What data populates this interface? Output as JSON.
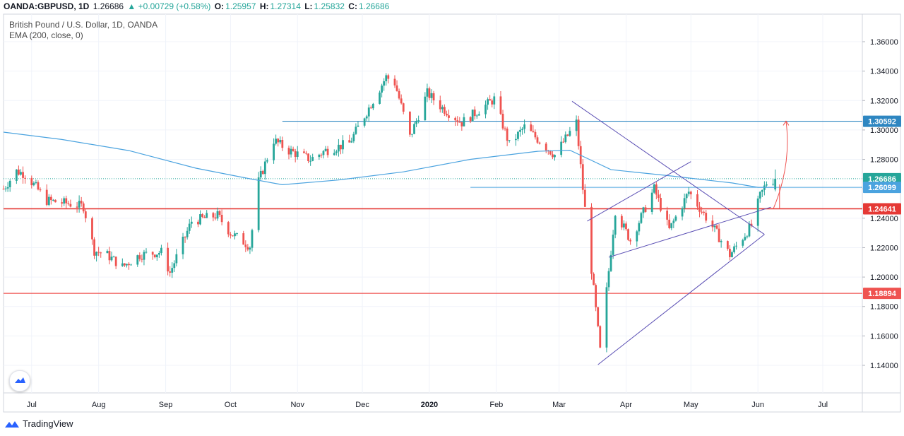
{
  "header": {
    "symbol": "OANDA:GBPUSD, 1D",
    "price": "1.26686",
    "change": "▲ +0.00729 (+0.58%)",
    "o_label": "O:",
    "o_value": "1.25957",
    "h_label": "H:",
    "h_value": "1.27314",
    "l_label": "L:",
    "l_value": "1.25832",
    "c_label": "C:",
    "c_value": "1.26686"
  },
  "legend": {
    "line1": "British Pound / U.S. Dollar, 1D, OANDA",
    "line2": "EMA (200, close, 0)"
  },
  "branding": {
    "name": "TradingView",
    "logo_icon": "tradingview-logo-icon"
  },
  "colors": {
    "up": "#26a69a",
    "down": "#ef5350",
    "ema": "#4ba3df",
    "resistance": "#2e86c1",
    "support": "#e53935",
    "trendline": "#5b4fb4"
  },
  "chart_data": {
    "type": "candlestick",
    "title": "British Pound / U.S. Dollar, 1D, OANDA",
    "indicator": "EMA (200, close, 0)",
    "ylim": [
      1.13,
      1.37
    ],
    "y_ticks": [
      "1.36000",
      "1.34000",
      "1.32000",
      "1.30000",
      "1.28000",
      "1.26000",
      "1.24000",
      "1.22000",
      "1.20000",
      "1.18000",
      "1.16000",
      "1.14000"
    ],
    "x_ticks": [
      "Jul",
      "Aug",
      "Sep",
      "Oct",
      "Nov",
      "Dec",
      "2020",
      "Feb",
      "Mar",
      "Apr",
      "May",
      "Jun",
      "Jul"
    ],
    "x_tick_dates": [
      "2019-07-01",
      "2019-08-01",
      "2019-09-01",
      "2019-10-01",
      "2019-11-01",
      "2019-12-01",
      "2020-01-01",
      "2020-02-01",
      "2020-03-01",
      "2020-04-01",
      "2020-05-01",
      "2020-06-01",
      "2020-07-01"
    ],
    "price_labels": [
      {
        "text": "1.30592",
        "value": 1.30592,
        "color": "#2e86c1"
      },
      {
        "text": "1.26686",
        "value": 1.26686,
        "color": "#26a69a"
      },
      {
        "text": "1.26099",
        "value": 1.26099,
        "color": "#4ba3df"
      },
      {
        "text": "1.24641",
        "value": 1.24641,
        "color": "#e53935"
      },
      {
        "text": "1.18894",
        "value": 1.18894,
        "color": "#ef5350"
      }
    ],
    "horizontal_lines": [
      {
        "value": 1.30592,
        "start": "2019-10-25",
        "color": "#2e86c1"
      },
      {
        "value": 1.24641,
        "start": "2019-06-18",
        "color": "#e53935"
      },
      {
        "value": 1.18894,
        "start": "2019-06-18",
        "color": "#ef5350"
      }
    ],
    "ema_points": [
      [
        "2019-06-18",
        1.2985
      ],
      [
        "2019-07-15",
        1.2935
      ],
      [
        "2019-08-15",
        1.286
      ],
      [
        "2019-09-15",
        1.274
      ],
      [
        "2019-10-10",
        1.2668
      ],
      [
        "2019-10-25",
        1.2628
      ],
      [
        "2019-11-20",
        1.266
      ],
      [
        "2019-12-20",
        1.2715
      ],
      [
        "2020-01-20",
        1.28
      ],
      [
        "2020-02-20",
        1.2855
      ],
      [
        "2020-03-06",
        1.2862
      ],
      [
        "2020-03-15",
        1.28
      ],
      [
        "2020-03-25",
        1.273
      ],
      [
        "2020-04-20",
        1.269
      ],
      [
        "2020-05-20",
        1.264
      ],
      [
        "2020-06-01",
        1.261
      ],
      [
        "2020-06-09",
        1.261
      ]
    ],
    "trendlines": [
      {
        "from": [
          "2020-03-07",
          1.3195
        ],
        "to": [
          "2020-06-04",
          1.229
        ]
      },
      {
        "from": [
          "2020-03-19",
          1.1405
        ],
        "to": [
          "2020-06-04",
          1.229
        ]
      },
      {
        "from": [
          "2020-03-24",
          1.2135
        ],
        "to": [
          "2020-06-07",
          1.2475
        ]
      },
      {
        "from": [
          "2020-03-14",
          1.238
        ],
        "to": [
          "2020-05-01",
          1.2785
        ]
      }
    ],
    "projection_arrow": {
      "date": "2020-06-14",
      "from": 1.2464,
      "to": 1.306
    },
    "ohlc_anchors": [
      [
        "2019-06-18",
        1.26
      ],
      [
        "2019-06-24",
        1.272
      ],
      [
        "2019-06-28",
        1.27
      ],
      [
        "2019-07-08",
        1.252
      ],
      [
        "2019-07-18",
        1.25
      ],
      [
        "2019-07-25",
        1.248
      ],
      [
        "2019-07-30",
        1.218
      ],
      [
        "2019-08-05",
        1.215
      ],
      [
        "2019-08-12",
        1.207
      ],
      [
        "2019-08-20",
        1.215
      ],
      [
        "2019-08-30",
        1.217
      ],
      [
        "2019-09-03",
        1.203
      ],
      [
        "2019-09-13",
        1.238
      ],
      [
        "2019-09-25",
        1.242
      ],
      [
        "2019-10-01",
        1.23
      ],
      [
        "2019-10-10",
        1.221
      ],
      [
        "2019-10-14",
        1.265
      ],
      [
        "2019-10-21",
        1.293
      ],
      [
        "2019-10-28",
        1.286
      ],
      [
        "2019-11-07",
        1.28
      ],
      [
        "2019-11-14",
        1.286
      ],
      [
        "2019-11-25",
        1.291
      ],
      [
        "2019-12-04",
        1.315
      ],
      [
        "2019-12-12",
        1.336
      ],
      [
        "2019-12-16",
        1.332
      ],
      [
        "2019-12-23",
        1.295
      ],
      [
        "2019-12-31",
        1.325
      ],
      [
        "2020-01-07",
        1.315
      ],
      [
        "2020-01-16",
        1.305
      ],
      [
        "2020-01-31",
        1.321
      ],
      [
        "2020-02-07",
        1.29
      ],
      [
        "2020-02-14",
        1.302
      ],
      [
        "2020-02-28",
        1.283
      ],
      [
        "2020-03-09",
        1.305
      ],
      [
        "2020-03-12",
        1.26
      ],
      [
        "2020-03-20",
        1.15
      ],
      [
        "2020-03-27",
        1.245
      ],
      [
        "2020-04-03",
        1.225
      ],
      [
        "2020-04-14",
        1.26
      ],
      [
        "2020-04-21",
        1.232
      ],
      [
        "2020-04-30",
        1.258
      ],
      [
        "2020-05-12",
        1.232
      ],
      [
        "2020-05-19",
        1.215
      ],
      [
        "2020-05-29",
        1.235
      ],
      [
        "2020-06-02",
        1.255
      ],
      [
        "2020-06-05",
        1.264
      ],
      [
        "2020-06-09",
        1.2668
      ]
    ],
    "last_candle": {
      "date": "2020-06-09",
      "open": 1.25957,
      "high": 1.27314,
      "low": 1.25832,
      "close": 1.26686
    }
  }
}
